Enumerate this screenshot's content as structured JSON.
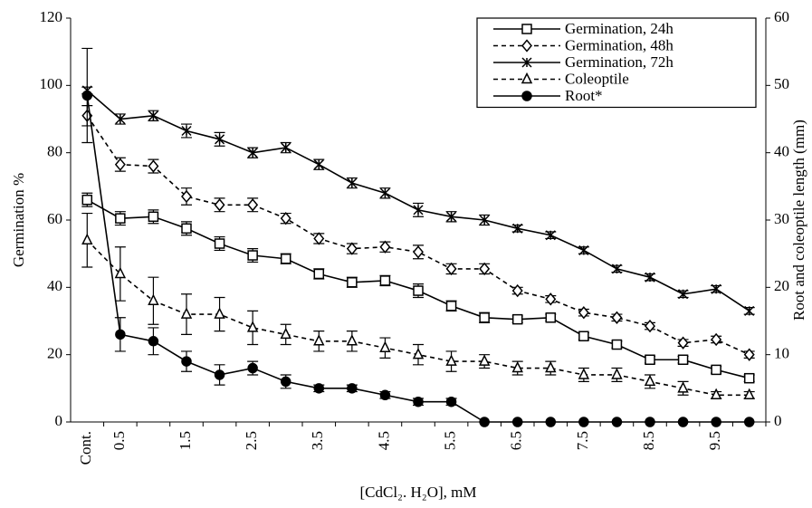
{
  "chart_data": {
    "type": "line",
    "x_label": "[CdCl₂. H₂O], mM",
    "y_label": "Germination %",
    "y2_label": "Root and coleoptile length (mm)",
    "categories": [
      "Cont.",
      "0.5",
      null,
      "1.5",
      null,
      "2.5",
      null,
      "3.5",
      null,
      "4.5",
      null,
      "5.5",
      null,
      "6.5",
      null,
      "7.5",
      null,
      "8.5",
      null,
      "9.5",
      null
    ],
    "ylim": [
      0,
      120
    ],
    "yticks": [
      0,
      20,
      40,
      60,
      80,
      100,
      120
    ],
    "y2lim": [
      0,
      60
    ],
    "y2ticks": [
      0,
      10,
      20,
      30,
      40,
      50,
      60
    ],
    "legend": "upper right",
    "series": [
      {
        "name": "Germination, 24h",
        "color": "#000000",
        "dashed": false,
        "marker": "square",
        "values": [
          66,
          60.5,
          61,
          57.5,
          53,
          49.5,
          48.5,
          44,
          41.5,
          42,
          39,
          34.5,
          31,
          30.5,
          31,
          25.5,
          23,
          18.5,
          18.5,
          15.5,
          13
        ],
        "errors": [
          2,
          2,
          2,
          2,
          2,
          2,
          1.5,
          1.5,
          1.5,
          1.5,
          2,
          1.5,
          1.5,
          1,
          1,
          1,
          1,
          1,
          1,
          1,
          1
        ]
      },
      {
        "name": "Germination, 48h",
        "color": "#000000",
        "dashed": true,
        "marker": "diamond",
        "values": [
          91,
          76.5,
          76,
          67,
          64.5,
          64.5,
          60.5,
          54.5,
          51.5,
          52,
          50.5,
          45.5,
          45.5,
          39,
          36.5,
          32.5,
          31,
          28.5,
          23.5,
          24.5,
          20
        ],
        "errors": [
          3,
          2,
          2,
          2.5,
          2,
          2,
          1.5,
          1.5,
          1.5,
          1.5,
          2,
          1.5,
          1.5,
          1,
          1,
          1,
          1,
          1,
          1,
          1,
          1
        ]
      },
      {
        "name": "Germination, 72h",
        "color": "#000000",
        "dashed": false,
        "marker": "asterisk",
        "values": [
          98.5,
          90,
          91,
          86.5,
          84,
          80,
          81.5,
          76.5,
          71,
          68,
          63,
          61,
          60,
          57.5,
          55.5,
          51,
          45.5,
          43,
          38,
          39.5,
          33
        ],
        "errors": [
          1,
          1.5,
          1.5,
          2,
          2,
          1.5,
          1.5,
          1.5,
          1.5,
          1.5,
          2,
          1.5,
          1.5,
          1,
          1,
          1,
          1,
          1,
          1,
          1,
          1
        ]
      },
      {
        "name": "Coleoptile",
        "color": "#000000",
        "dashed": true,
        "marker": "triangle",
        "axis": "y2",
        "values": [
          27,
          22,
          18,
          16,
          16,
          14,
          13,
          12,
          12,
          11,
          10,
          9,
          9,
          8,
          8,
          7,
          7,
          6,
          5,
          4,
          4
        ],
        "errors": [
          4,
          4,
          3.5,
          3,
          2.5,
          2.5,
          1.5,
          1.5,
          1.5,
          1.5,
          1.5,
          1.5,
          1,
          1,
          1,
          1,
          1,
          1,
          1,
          0.5,
          0.5
        ]
      },
      {
        "name": "Root*",
        "color": "#000000",
        "dashed": false,
        "marker": "circle",
        "axis": "y2",
        "values": [
          48.5,
          13,
          12,
          9,
          7,
          8,
          6,
          5,
          5,
          4,
          3,
          3,
          0,
          0,
          0,
          0,
          0,
          0,
          0,
          0,
          0
        ],
        "errors": [
          7,
          2.5,
          2,
          1.5,
          1.5,
          1,
          1,
          0.5,
          0.5,
          0.5,
          0.5,
          0.5,
          0,
          0,
          0,
          0,
          0,
          0,
          0,
          0,
          0
        ]
      }
    ]
  }
}
